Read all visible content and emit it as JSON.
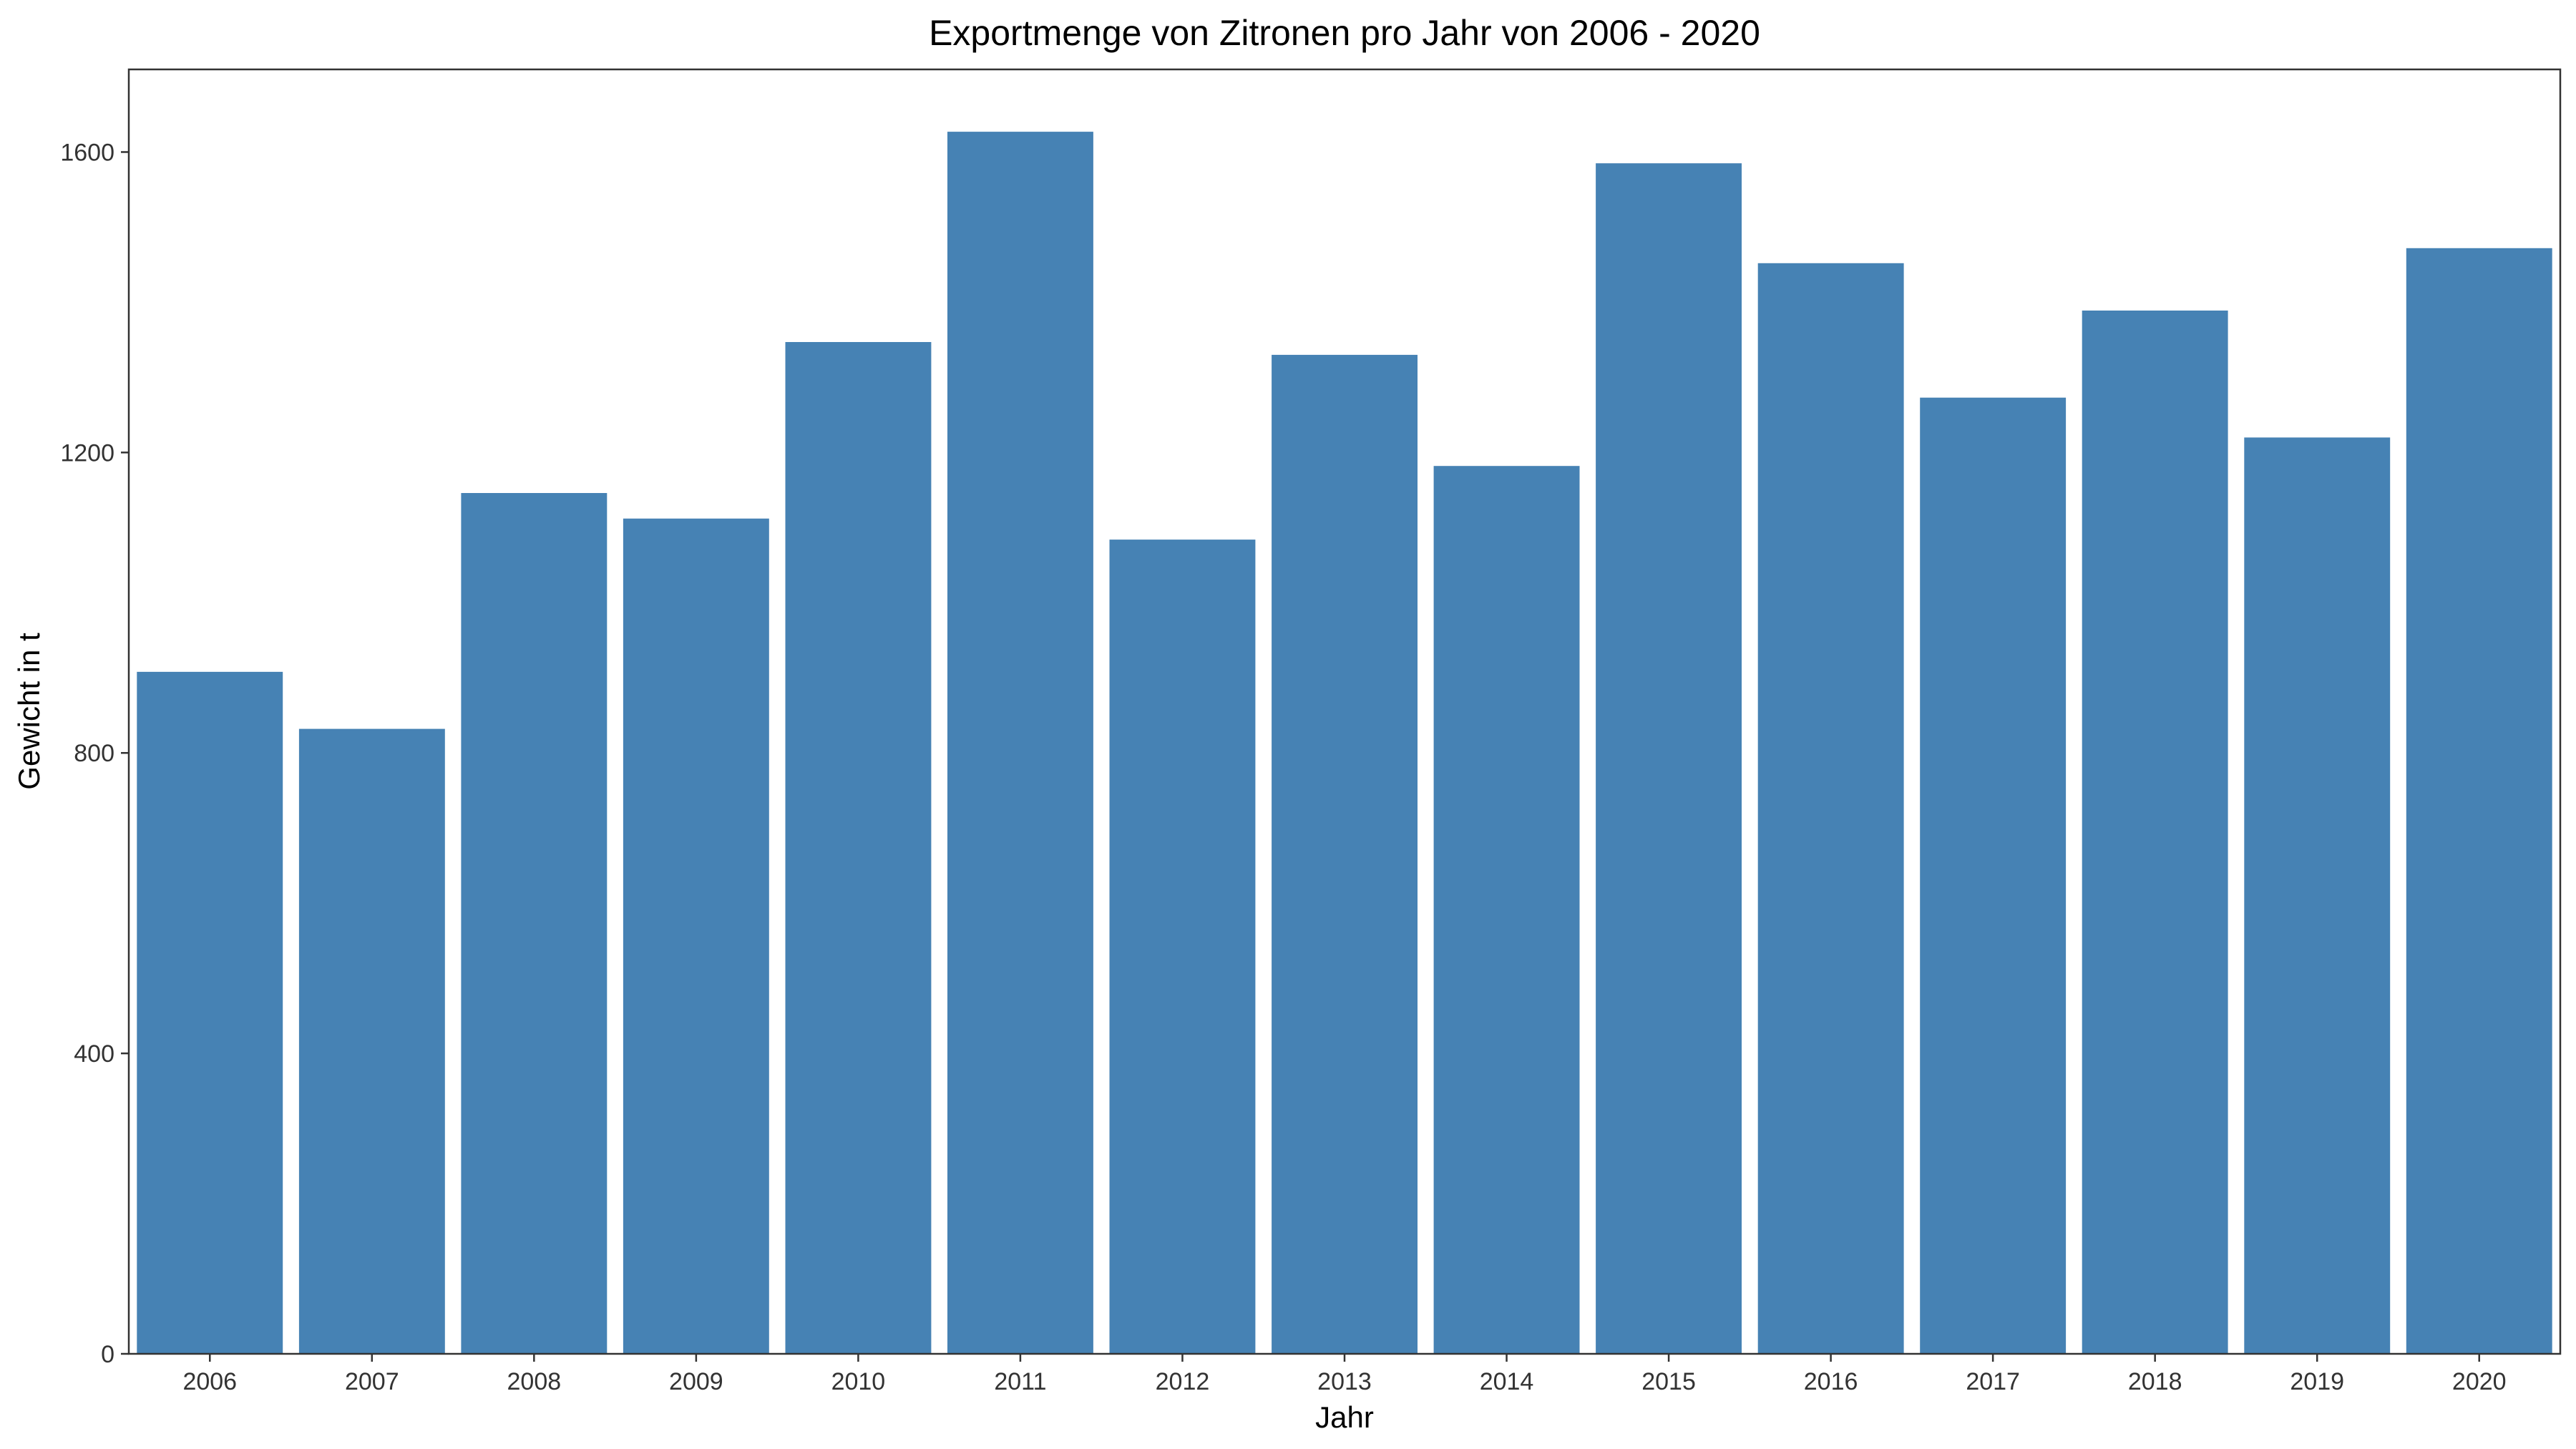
{
  "chart_data": {
    "type": "bar",
    "title": "Exportmenge von Zitronen pro Jahr von 2006 - 2020",
    "xlabel": "Jahr",
    "ylabel": "Gewicht in t",
    "categories": [
      "2006",
      "2007",
      "2008",
      "2009",
      "2010",
      "2011",
      "2012",
      "2013",
      "2014",
      "2015",
      "2016",
      "2017",
      "2018",
      "2019",
      "2020"
    ],
    "values": [
      908,
      832,
      1146,
      1112,
      1347,
      1627,
      1084,
      1330,
      1182,
      1585,
      1452,
      1273,
      1389,
      1220,
      1472
    ],
    "yticks": [
      0,
      400,
      800,
      1200,
      1600
    ],
    "ylim": [
      0,
      1710
    ],
    "grid": false,
    "legend": "none",
    "bar_color": "#4682B4",
    "panel_border_color": "#333333"
  }
}
